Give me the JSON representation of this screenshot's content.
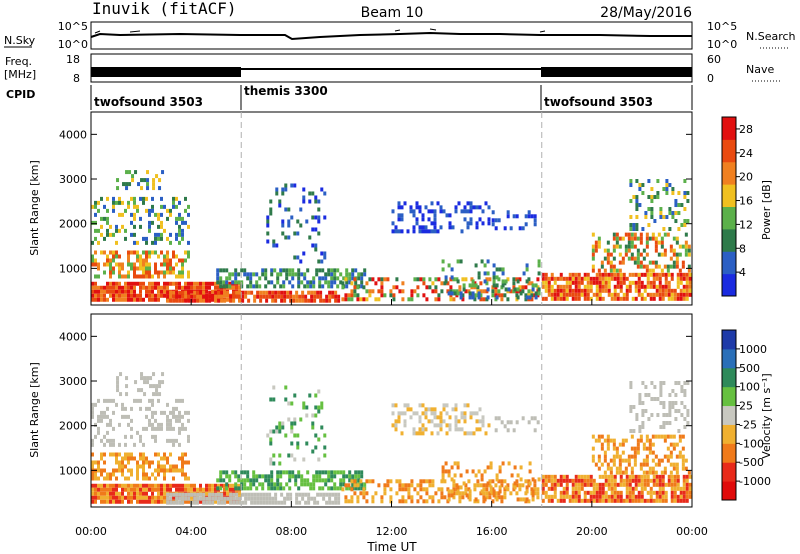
{
  "header": {
    "station": "Inuvik (fitACF)",
    "beam": "Beam 10",
    "date": "28/May/2016"
  },
  "summary_panels": {
    "nsky": {
      "label": "N.Sky",
      "ticks": [
        "10^5",
        "10^0"
      ]
    },
    "nsearch": {
      "label": "N.Search",
      "ticks": [
        "10^5",
        "10^0"
      ]
    },
    "freq": {
      "label_line1": "Freq.",
      "label_line2": "[MHz]",
      "ticks": [
        "18",
        "8"
      ]
    },
    "nave": {
      "label": "Nave",
      "ticks": [
        "60",
        "0"
      ]
    },
    "cpid": {
      "label": "CPID",
      "segments": [
        {
          "name": "twofsound 3503",
          "start_hour": 0,
          "end_hour": 6
        },
        {
          "name": "themis 3300",
          "start_hour": 6,
          "end_hour": 18
        },
        {
          "name": "twofsound 3503",
          "start_hour": 18,
          "end_hour": 24
        }
      ]
    }
  },
  "chart_data": [
    {
      "type": "heatmap",
      "name": "power",
      "ylabel": "Slant Range [km]",
      "ylim": [
        180,
        4500
      ],
      "yticks": [
        1000,
        2000,
        3000,
        4000
      ],
      "xlim": [
        0,
        24
      ],
      "colorbar": {
        "label": "Power [dB]",
        "range": [
          0,
          30
        ],
        "ticks": [
          4,
          8,
          12,
          16,
          20,
          24,
          28
        ],
        "colors": [
          "#1a2be0",
          "#2b5fc4",
          "#2e7a4a",
          "#5bb04a",
          "#f0c020",
          "#f08020",
          "#e94a10",
          "#e11010"
        ]
      }
    },
    {
      "type": "heatmap",
      "name": "velocity",
      "ylabel": "Slant Range [km]",
      "ylim": [
        180,
        4500
      ],
      "yticks": [
        1000,
        2000,
        3000,
        4000
      ],
      "xlim": [
        0,
        24
      ],
      "xticks": [
        "00:00",
        "04:00",
        "08:00",
        "12:00",
        "16:00",
        "20:00",
        "00:00"
      ],
      "xlabel": "Time UT",
      "colorbar": {
        "label": "Velocity [m s⁻¹]",
        "ticks": [
          "1000",
          "500",
          "100",
          "25",
          "-25",
          "-100",
          "-500",
          "-1000"
        ],
        "colors": [
          "#1e3aa8",
          "#2a6fb8",
          "#2e8a5a",
          "#66c040",
          "#c8c8c0",
          "#f0b030",
          "#f07a1a",
          "#e82a1a",
          "#e00a0a"
        ]
      }
    }
  ],
  "colors": {
    "ground_scatter": "#bebeb6",
    "frame": "#000000",
    "dashed_lines": "#b0b0b0"
  }
}
